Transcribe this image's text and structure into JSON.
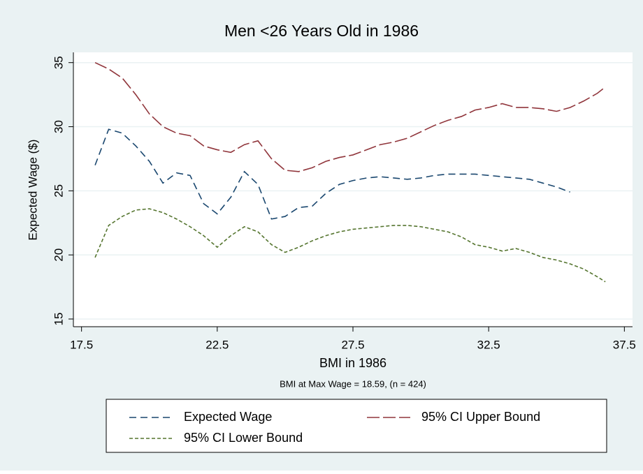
{
  "chart_data": {
    "type": "line",
    "title": "Men <26 Years Old in 1986",
    "x_label": "BMI in 1986",
    "y_label": "Expected Wage ($)",
    "note": "BMI at Max Wage = 18.59, (n = 424)",
    "x": [
      18,
      18.5,
      19,
      19.5,
      20,
      20.5,
      21,
      21.5,
      22,
      22.5,
      23,
      23.5,
      24,
      24.5,
      25,
      25.5,
      26,
      26.5,
      27,
      27.5,
      28,
      28.5,
      29,
      29.5,
      30,
      30.5,
      31,
      31.5,
      32,
      32.5,
      33,
      33.5,
      34,
      34.5,
      35,
      35.5,
      36,
      36.5,
      36.8
    ],
    "series": [
      {
        "name": "Expected Wage",
        "color": "#1a476f",
        "dash": "10 6",
        "values": [
          27,
          29.8,
          29.5,
          28.5,
          27.3,
          25.6,
          26.4,
          26.2,
          24,
          23.2,
          24.5,
          26.5,
          25.5,
          22.8,
          23,
          23.7,
          23.8,
          24.8,
          25.5,
          25.8,
          26,
          26.1,
          26,
          25.9,
          26,
          26.2,
          26.3,
          26.3,
          26.3,
          26.2,
          26.1,
          26,
          25.9,
          25.6,
          25.3,
          24.9,
          null,
          null,
          null
        ]
      },
      {
        "name": "95% CI Upper Bound",
        "color": "#90353b",
        "dash": "18 5",
        "values": [
          35,
          34.5,
          33.8,
          32.5,
          31,
          30,
          29.5,
          29.3,
          28.5,
          28.2,
          28,
          28.6,
          28.9,
          27.5,
          26.6,
          26.5,
          26.8,
          27.3,
          27.6,
          27.8,
          28.2,
          28.6,
          28.8,
          29.1,
          29.6,
          30.1,
          30.5,
          30.8,
          31.3,
          31.5,
          31.8,
          31.5,
          31.5,
          31.4,
          31.2,
          31.5,
          32,
          32.6,
          33.1
        ]
      },
      {
        "name": "95% CI Lower Bound",
        "color": "#55752f",
        "dash": "5 3",
        "values": [
          19.8,
          22.3,
          23,
          23.5,
          23.6,
          23.3,
          22.8,
          22.2,
          21.5,
          20.6,
          21.5,
          22.2,
          21.8,
          20.8,
          20.2,
          20.6,
          21.1,
          21.5,
          21.8,
          22,
          22.1,
          22.2,
          22.3,
          22.3,
          22.2,
          22,
          21.8,
          21.4,
          20.8,
          20.6,
          20.3,
          20.5,
          20.2,
          19.8,
          19.6,
          19.3,
          18.9,
          18.3,
          17.9
        ]
      }
    ],
    "xlim": [
      17.2,
      37.8
    ],
    "xticks": [
      17.5,
      22.5,
      27.5,
      32.5,
      37.5
    ],
    "ylim": [
      14.4,
      35.8
    ],
    "yticks": [
      15,
      20,
      25,
      30,
      35
    ],
    "grid": true,
    "legend": "bottom"
  }
}
